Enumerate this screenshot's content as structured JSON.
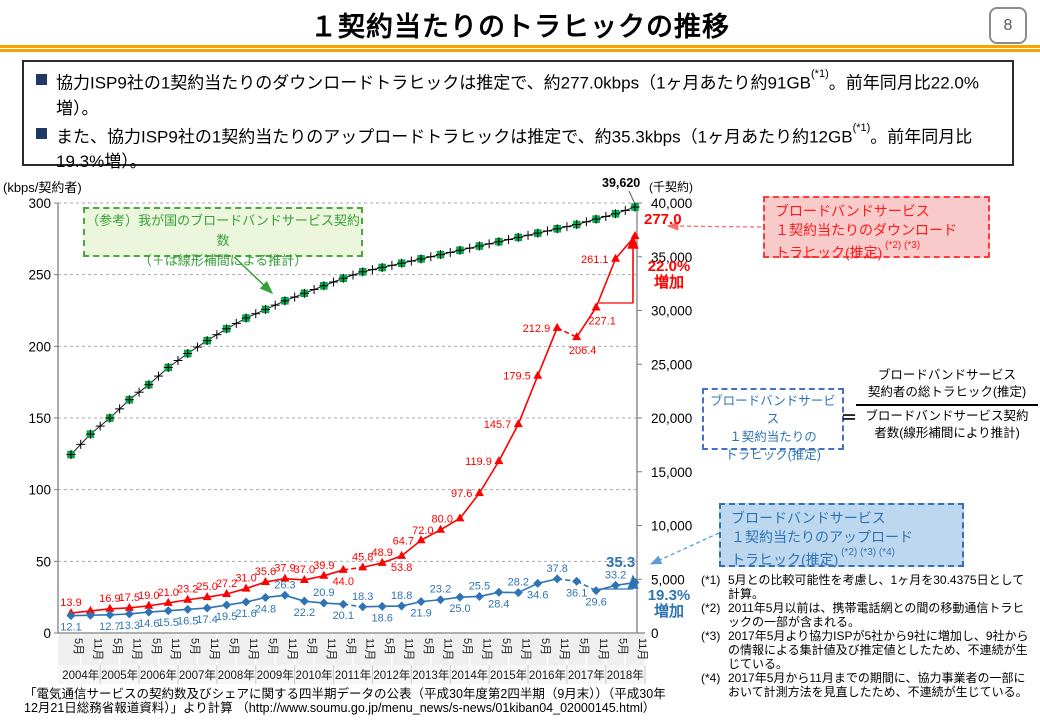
{
  "page": {
    "title": "１契約当たりのトラヒックの推移",
    "page_number": "8"
  },
  "summary": {
    "bullets": [
      {
        "pre": "協力ISP9社の1契約当たりのダウンロードトラヒックは推定で、約277.0kbps（1ヶ月あたり約91GB",
        "sup": "(*1)",
        "post": "。前年同月比22.0%増）。"
      },
      {
        "pre": "また、協力ISP9社の1契約当たりのアップロードトラヒックは推定で、約35.3kbps（1ヶ月あたり約12GB",
        "sup": "(*1)",
        "post": "。前年同月比19.3%増）。"
      }
    ]
  },
  "chart_data": {
    "type": "line",
    "x": {
      "years": [
        "2004年",
        "2005年",
        "2006年",
        "2007年",
        "2008年",
        "2009年",
        "2010年",
        "2011年",
        "2012年",
        "2013年",
        "2014年",
        "2015年",
        "2016年",
        "2017年",
        "2018年"
      ],
      "months_per_year": [
        "5月",
        "11月"
      ]
    },
    "axes": {
      "left": {
        "title": "(kbps/契約者)",
        "ticks": [
          "0",
          "50",
          "100",
          "150",
          "200",
          "250",
          "300"
        ],
        "max": 300
      },
      "right": {
        "title": "(千契約)",
        "ticks": [
          "0",
          "5,000",
          "10,000",
          "15,000",
          "20,000",
          "25,000",
          "30,000",
          "35,000",
          "40,000"
        ],
        "max": 40000
      }
    },
    "grid": "dashed-horizontal",
    "series": [
      {
        "id": "contracts",
        "name": "我が国のブロードバンドサービス契約数（＋は線形補間による推計）",
        "axis": "right",
        "marker": "square-plus",
        "color": "#00B050",
        "line_color": "#1a1a1a",
        "values": [
          16600,
          18500,
          20000,
          21700,
          23100,
          24700,
          26000,
          27200,
          28300,
          29300,
          30100,
          30900,
          31600,
          32300,
          33000,
          33600,
          34000,
          34400,
          34800,
          35200,
          35600,
          36000,
          36400,
          36800,
          37200,
          37600,
          38000,
          38500,
          39000,
          39620
        ],
        "labels": null,
        "dashed_segments": []
      },
      {
        "id": "download",
        "name": "ブロードバンドサービス1契約当たりのダウンロードトラヒック（推定）",
        "axis": "left",
        "marker": "triangle",
        "color": "#FF0000",
        "values": [
          13.9,
          15.4,
          16.9,
          17.5,
          19.0,
          21.0,
          23.2,
          25.0,
          27.2,
          31.0,
          35.6,
          37.9,
          37.0,
          39.9,
          44.0,
          45.8,
          48.9,
          53.8,
          64.7,
          72.0,
          80.0,
          97.6,
          119.9,
          145.7,
          179.5,
          212.9,
          206.4,
          227.1,
          261.1,
          277.0
        ],
        "labels": [
          "13.9",
          "",
          "16.9",
          "17.5",
          "19.0",
          "21.0",
          "23.2",
          "25.0",
          "27.2",
          "31.0",
          "35.6",
          "37.9",
          "37.0",
          "39.9",
          "44.0",
          "45.8",
          "48.9",
          "53.8",
          "64.7",
          "72.0",
          "80.0",
          "97.6",
          "119.9",
          "145.7",
          "179.5",
          "212.9",
          "206.4",
          "227.1",
          "261.1",
          ""
        ],
        "label_sides": [
          "a",
          "",
          "a",
          "a",
          "a",
          "a",
          "a",
          "a",
          "a",
          "a",
          "a",
          "a",
          "a",
          "a",
          "b",
          "a",
          "a",
          "b",
          "l",
          "l",
          "l",
          "l",
          "l",
          "l",
          "l",
          "l",
          "br",
          "br",
          "l",
          ""
        ],
        "dashed_segments": [
          [
            14,
            15
          ],
          [
            25,
            26
          ]
        ]
      },
      {
        "id": "upload",
        "name": "ブロードバンドサービス1契約当たりのアップロードトラヒック（推定）",
        "axis": "left",
        "marker": "diamond",
        "color": "#2E74B5",
        "values": [
          12.1,
          12.4,
          12.7,
          13.3,
          14.6,
          15.5,
          16.5,
          17.4,
          19.5,
          21.6,
          24.8,
          26.3,
          22.2,
          20.9,
          20.1,
          18.3,
          18.6,
          18.8,
          21.9,
          23.2,
          25.0,
          25.5,
          28.4,
          28.2,
          34.6,
          37.8,
          36.1,
          29.6,
          33.2,
          35.3
        ],
        "labels": [
          "12.1",
          "",
          "12.7",
          "13.3",
          "14.6",
          "15.5",
          "16.5",
          "17.4",
          "19.5",
          "21.6",
          "24.8",
          "26.3",
          "22.2",
          "20.9",
          "20.1",
          "18.3",
          "18.6",
          "18.8",
          "21.9",
          "23.2",
          "25.0",
          "25.5",
          "28.4",
          "28.2",
          "34.6",
          "37.8",
          "36.1",
          "29.6",
          "33.2",
          ""
        ],
        "label_sides": [
          "b",
          "",
          "b",
          "b",
          "b",
          "b",
          "b",
          "b",
          "b",
          "b",
          "b",
          "a",
          "b",
          "a",
          "b",
          "a",
          "b",
          "a",
          "b",
          "a",
          "b",
          "a",
          "b",
          "a",
          "b",
          "a",
          "b",
          "b",
          "a",
          ""
        ],
        "dashed_segments": [
          [
            14,
            15
          ],
          [
            25,
            26
          ],
          [
            26,
            27
          ]
        ]
      }
    ]
  },
  "annotations": {
    "green_note": {
      "line1": "（参考）我が国のブロードバンドサービス契約数",
      "line2": "（＋は線形補間による推計）"
    },
    "contracts_callout": {
      "value": "39,620",
      "unit": "(千契約)"
    },
    "download_callout": {
      "value": "277.0",
      "pct": "22.0%",
      "word": "増加"
    },
    "upload_callout": {
      "value": "35.3",
      "pct": "19.3%",
      "word": "増加"
    },
    "download_box": {
      "lines": [
        "ブロードバンドサービス",
        "１契約当たりのダウンロード",
        "トラヒック(推定)"
      ],
      "sup": " (*2) (*3)"
    },
    "upload_box": {
      "lines": [
        "ブロードバンドサービス",
        "１契約当たりのアップロード",
        "トラヒック(推定)"
      ],
      "sup": " (*2) (*3) (*4)"
    },
    "formula": {
      "left_lines": [
        "ブロードバンドサービス",
        "１契約当たりの",
        "トラヒック(推定)"
      ],
      "equals": "＝",
      "numerator": [
        "ブロードバンドサービス",
        "契約者の総トラヒック(推定)"
      ],
      "denominator": [
        "ブロードバンドサービス契約",
        "者数(線形補間により推計)"
      ]
    }
  },
  "footnotes": [
    {
      "mark": "(*1)",
      "text": "5月との比較可能性を考慮し、1ヶ月を30.4375日として計算。"
    },
    {
      "mark": "(*2)",
      "text": "2011年5月以前は、携帯電話網との間の移動通信トラヒックの一部が含まれる。"
    },
    {
      "mark": "(*3)",
      "text": "2017年5月より協力ISPが5社から9社に増加し、9社からの情報による集計値及び推定値としたため、不連続が生じている。"
    },
    {
      "mark": "(*4)",
      "text": "2017年5月から11月までの期間に、協力事業者の一部において計測方法を見直したため、不連続が生じている。"
    }
  ],
  "source": "「電気通信サービスの契約数及びシェアに関する四半期データの公表（平成30年度第2四半期（9月末））（平成30年12月21日総務省報道資料）」より計算 （http://www.soumu.go.jp/menu_news/s-news/01kiban04_02000145.html）"
}
